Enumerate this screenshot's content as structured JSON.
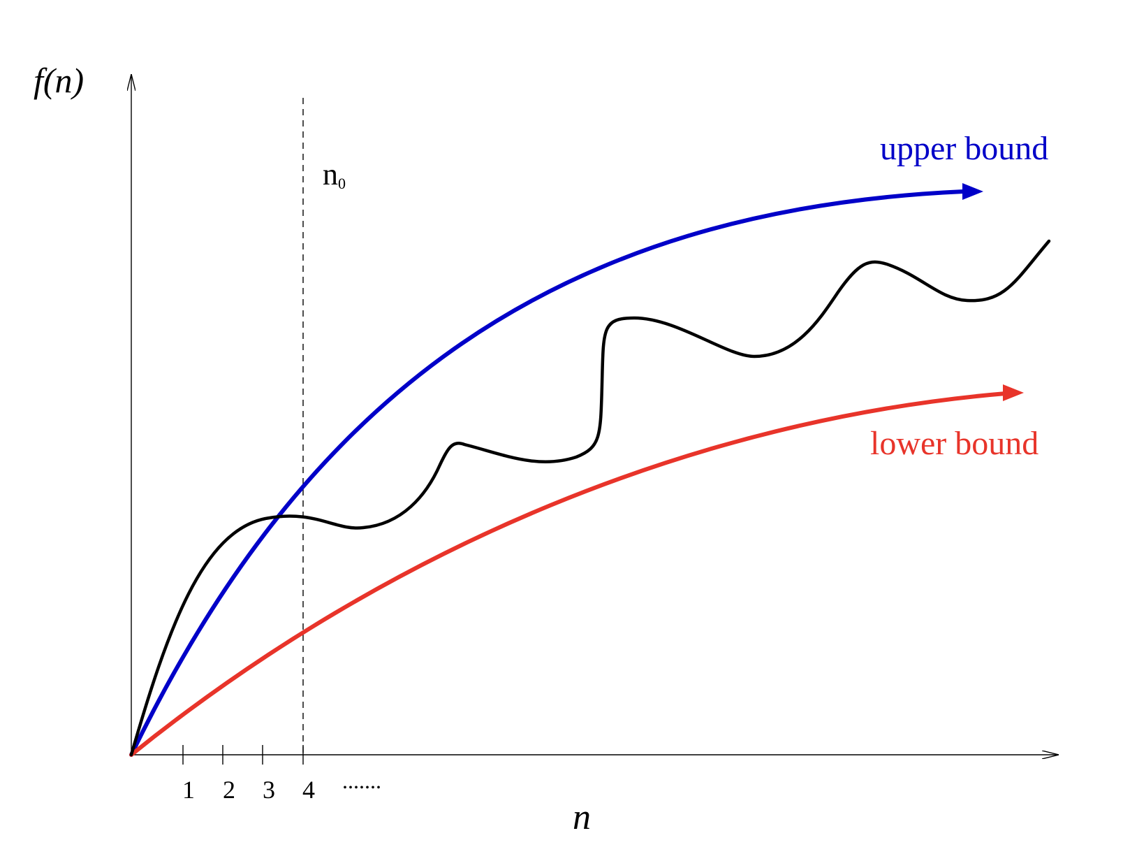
{
  "labels": {
    "y_axis": "f(n)",
    "x_axis": "n",
    "threshold_main": "n",
    "threshold_sub": "0",
    "upper": "upper bound",
    "lower": "lower bound",
    "ellipsis": "......."
  },
  "x_ticks": [
    "1",
    "2",
    "3",
    "4"
  ],
  "colors": {
    "upper": "#0000c8",
    "lower": "#e8342a",
    "function": "#000000",
    "axes": "#000000"
  }
}
